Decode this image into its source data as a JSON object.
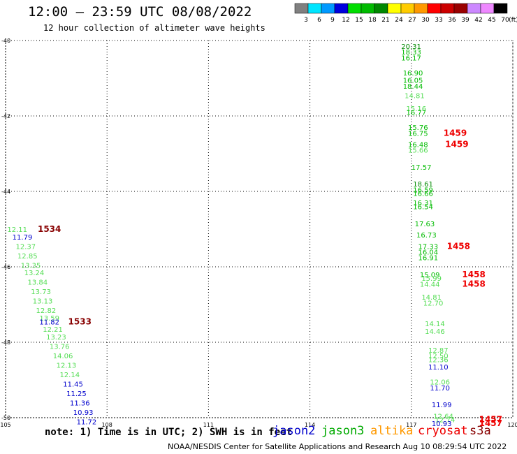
{
  "title": "12:00 — 23:59 UTC 08/08/2022",
  "subtitle": "12 hour collection of altimeter wave heights",
  "color_scale": {
    "labels": [
      "3",
      "6",
      "9",
      "12",
      "15",
      "18",
      "21",
      "24",
      "27",
      "30",
      "33",
      "36",
      "39",
      "42",
      "45",
      "70"
    ],
    "unit": "(ft)",
    "colors": [
      "#808080",
      "#00e5ff",
      "#0099ff",
      "#0000dd",
      "#00dd00",
      "#00bb00",
      "#008800",
      "#ffff00",
      "#ffcc00",
      "#ff9900",
      "#ff0000",
      "#cc0000",
      "#990000",
      "#cc88ff",
      "#ee88ff",
      "#000000"
    ]
  },
  "map": {
    "lon_range": [
      105,
      120
    ],
    "lat_range": [
      -50,
      -40
    ],
    "lon_ticks": [
      "105",
      "108",
      "111",
      "114",
      "117",
      "120"
    ],
    "lat_ticks": [
      "-40",
      "-42",
      "-44",
      "-46",
      "-48",
      "-50"
    ],
    "grid": "dotted"
  },
  "colors": {
    "jason2": "#0000cc",
    "jason3": "#00aa00",
    "altika": "#ff9900",
    "cryosat": "#ee0000",
    "s3a": "#880000",
    "light_green": "#55dd55"
  },
  "wave_labels": [
    {
      "text": "20.31",
      "lon": 116.7,
      "lat": -40.15,
      "color": "#008800"
    },
    {
      "text": "18.33",
      "lon": 116.7,
      "lat": -40.3,
      "color": "#00bb00"
    },
    {
      "text": "16.17",
      "lon": 116.7,
      "lat": -40.45,
      "color": "#00bb00"
    },
    {
      "text": "16.90",
      "lon": 116.75,
      "lat": -40.85,
      "color": "#00bb00"
    },
    {
      "text": "16.05",
      "lon": 116.75,
      "lat": -41.05,
      "color": "#00bb00"
    },
    {
      "text": "18.44",
      "lon": 116.75,
      "lat": -41.2,
      "color": "#00bb00"
    },
    {
      "text": "14.81",
      "lon": 116.8,
      "lat": -41.45,
      "color": "#55dd55"
    },
    {
      "text": "15.16",
      "lon": 116.85,
      "lat": -41.8,
      "color": "#55dd55"
    },
    {
      "text": "16.77",
      "lon": 116.85,
      "lat": -41.9,
      "color": "#00bb00"
    },
    {
      "text": "15.76",
      "lon": 116.9,
      "lat": -42.3,
      "color": "#00bb00"
    },
    {
      "text": "16.75",
      "lon": 116.9,
      "lat": -42.45,
      "color": "#00bb00"
    },
    {
      "text": "1459",
      "lon": 117.95,
      "lat": -42.45,
      "color": "#ee0000"
    },
    {
      "text": "16.48",
      "lon": 116.9,
      "lat": -42.75,
      "color": "#00bb00"
    },
    {
      "text": "1459",
      "lon": 118.0,
      "lat": -42.75,
      "color": "#ee0000"
    },
    {
      "text": "15.66",
      "lon": 116.9,
      "lat": -42.9,
      "color": "#55dd55"
    },
    {
      "text": "17.57",
      "lon": 117.0,
      "lat": -43.35,
      "color": "#00bb00"
    },
    {
      "text": "18.61",
      "lon": 117.05,
      "lat": -43.8,
      "color": "#008800"
    },
    {
      "text": "16.59",
      "lon": 117.05,
      "lat": -43.95,
      "color": "#00bb00"
    },
    {
      "text": "16.66",
      "lon": 117.05,
      "lat": -44.05,
      "color": "#00bb00"
    },
    {
      "text": "16.31",
      "lon": 117.05,
      "lat": -44.3,
      "color": "#00bb00"
    },
    {
      "text": "16.54",
      "lon": 117.05,
      "lat": -44.4,
      "color": "#00bb00"
    },
    {
      "text": "17.63",
      "lon": 117.1,
      "lat": -44.85,
      "color": "#00bb00"
    },
    {
      "text": "16.73",
      "lon": 117.15,
      "lat": -45.15,
      "color": "#00bb00"
    },
    {
      "text": "17.33",
      "lon": 117.2,
      "lat": -45.45,
      "color": "#00bb00"
    },
    {
      "text": "1458",
      "lon": 118.05,
      "lat": -45.45,
      "color": "#ee0000"
    },
    {
      "text": "16.04",
      "lon": 117.2,
      "lat": -45.6,
      "color": "#00bb00"
    },
    {
      "text": "16.91",
      "lon": 117.2,
      "lat": -45.75,
      "color": "#00bb00"
    },
    {
      "text": "15.09",
      "lon": 117.25,
      "lat": -46.2,
      "color": "#00bb00"
    },
    {
      "text": "15.99",
      "lon": 117.3,
      "lat": -46.3,
      "color": "#55dd55"
    },
    {
      "text": "1458",
      "lon": 118.5,
      "lat": -46.2,
      "color": "#ee0000"
    },
    {
      "text": "14.44",
      "lon": 117.25,
      "lat": -46.45,
      "color": "#55dd55"
    },
    {
      "text": "1458",
      "lon": 118.5,
      "lat": -46.45,
      "color": "#ee0000"
    },
    {
      "text": "14.81",
      "lon": 117.3,
      "lat": -46.8,
      "color": "#55dd55"
    },
    {
      "text": "12.70",
      "lon": 117.35,
      "lat": -46.95,
      "color": "#55dd55"
    },
    {
      "text": "14.14",
      "lon": 117.4,
      "lat": -47.5,
      "color": "#55dd55"
    },
    {
      "text": "14.46",
      "lon": 117.4,
      "lat": -47.7,
      "color": "#55dd55"
    },
    {
      "text": "12.87",
      "lon": 117.5,
      "lat": -48.2,
      "color": "#55dd55"
    },
    {
      "text": "12.50",
      "lon": 117.5,
      "lat": -48.35,
      "color": "#55dd55"
    },
    {
      "text": "12.36",
      "lon": 117.5,
      "lat": -48.45,
      "color": "#55dd55"
    },
    {
      "text": "11.10",
      "lon": 117.5,
      "lat": -48.65,
      "color": "#0000cc"
    },
    {
      "text": "12.06",
      "lon": 117.55,
      "lat": -49.05,
      "color": "#55dd55"
    },
    {
      "text": "11.70",
      "lon": 117.55,
      "lat": -49.2,
      "color": "#0000cc"
    },
    {
      "text": "11.99",
      "lon": 117.6,
      "lat": -49.65,
      "color": "#0000cc"
    },
    {
      "text": "12.64",
      "lon": 117.65,
      "lat": -49.95,
      "color": "#55dd55"
    },
    {
      "text": "12.74",
      "lon": 117.7,
      "lat": -50.05,
      "color": "#55dd55"
    },
    {
      "text": "1457",
      "lon": 119.0,
      "lat": -50.05,
      "color": "#ee0000"
    },
    {
      "text": "10.93",
      "lon": 117.6,
      "lat": -50.15,
      "color": "#0000cc"
    },
    {
      "text": "1457",
      "lon": 119.0,
      "lat": -50.15,
      "color": "#ee0000"
    },
    {
      "text": "12.11",
      "lon": 105.05,
      "lat": -45.0,
      "color": "#55dd55"
    },
    {
      "text": "1534",
      "lon": 105.95,
      "lat": -45.0,
      "color": "#880000"
    },
    {
      "text": "11.79",
      "lon": 105.2,
      "lat": -45.2,
      "color": "#0000cc"
    },
    {
      "text": "12.37",
      "lon": 105.3,
      "lat": -45.45,
      "color": "#55dd55"
    },
    {
      "text": "12.85",
      "lon": 105.35,
      "lat": -45.7,
      "color": "#55dd55"
    },
    {
      "text": "13.35",
      "lon": 105.45,
      "lat": -45.95,
      "color": "#55dd55"
    },
    {
      "text": "13.24",
      "lon": 105.55,
      "lat": -46.15,
      "color": "#55dd55"
    },
    {
      "text": "13.84",
      "lon": 105.65,
      "lat": -46.4,
      "color": "#55dd55"
    },
    {
      "text": "13.73",
      "lon": 105.75,
      "lat": -46.65,
      "color": "#55dd55"
    },
    {
      "text": "13.13",
      "lon": 105.8,
      "lat": -46.9,
      "color": "#55dd55"
    },
    {
      "text": "12.82",
      "lon": 105.9,
      "lat": -47.15,
      "color": "#55dd55"
    },
    {
      "text": "13.59",
      "lon": 106.0,
      "lat": -47.35,
      "color": "#55dd55"
    },
    {
      "text": "11.82",
      "lon": 106.0,
      "lat": -47.45,
      "color": "#0000cc"
    },
    {
      "text": "1533",
      "lon": 106.85,
      "lat": -47.45,
      "color": "#880000"
    },
    {
      "text": "12.21",
      "lon": 106.1,
      "lat": -47.65,
      "color": "#55dd55"
    },
    {
      "text": "13.23",
      "lon": 106.2,
      "lat": -47.85,
      "color": "#55dd55"
    },
    {
      "text": "13.76",
      "lon": 106.3,
      "lat": -48.1,
      "color": "#55dd55"
    },
    {
      "text": "14.06",
      "lon": 106.4,
      "lat": -48.35,
      "color": "#55dd55"
    },
    {
      "text": "12.13",
      "lon": 106.5,
      "lat": -48.6,
      "color": "#55dd55"
    },
    {
      "text": "12.14",
      "lon": 106.6,
      "lat": -48.85,
      "color": "#55dd55"
    },
    {
      "text": "11.45",
      "lon": 106.7,
      "lat": -49.1,
      "color": "#0000cc"
    },
    {
      "text": "11.25",
      "lon": 106.8,
      "lat": -49.35,
      "color": "#0000cc"
    },
    {
      "text": "11.36",
      "lon": 106.9,
      "lat": -49.6,
      "color": "#0000cc"
    },
    {
      "text": "10.93",
      "lon": 107.0,
      "lat": -49.85,
      "color": "#0000cc"
    },
    {
      "text": "11.72",
      "lon": 107.1,
      "lat": -50.1,
      "color": "#0000cc"
    }
  ],
  "footer": {
    "note": "note: 1) Time is in UTC; 2) SWH is in feet",
    "legend": {
      "jason2": "jason2",
      "jason3": "jason3",
      "altika": "altika",
      "cryosat": "cryosat",
      "s3a": "s3a"
    },
    "credit": "NOAA/NESDIS Center for Satellite Applications and Research    Aug 10 08:29:54 UTC 2022"
  }
}
